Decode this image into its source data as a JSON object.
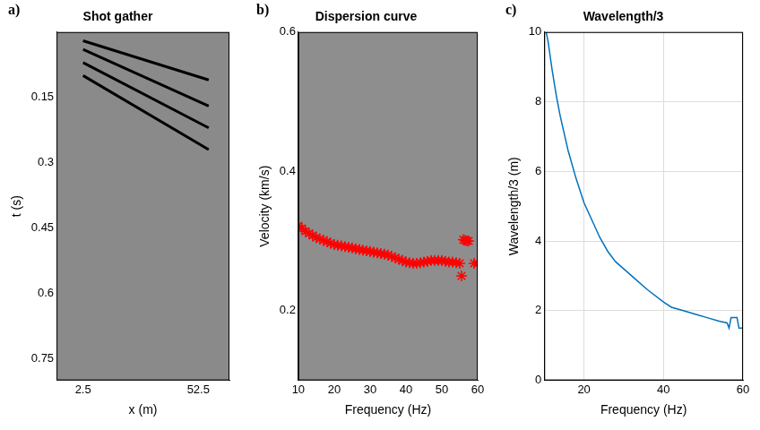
{
  "chart_data": [
    {
      "type": "line",
      "panel_label": "a)",
      "title": "Shot gather",
      "x_label": "x (m)",
      "y_label": "t (s)",
      "xlim": [
        -9,
        66
      ],
      "xticks": [
        2.5,
        52.5
      ],
      "ylim": [
        0.8,
        0
      ],
      "yticks": [
        0.15,
        0.3,
        0.45,
        0.6,
        0.75
      ],
      "grid": false,
      "series": [
        {
          "color": "#000000",
          "x": [
            2.5,
            57
          ],
          "values": [
            0.02,
            0.11
          ]
        },
        {
          "color": "#000000",
          "x": [
            2.5,
            57
          ],
          "values": [
            0.04,
            0.17
          ]
        },
        {
          "color": "#000000",
          "x": [
            2.5,
            57
          ],
          "values": [
            0.07,
            0.22
          ]
        },
        {
          "color": "#000000",
          "x": [
            2.5,
            57
          ],
          "values": [
            0.1,
            0.27
          ]
        }
      ]
    },
    {
      "type": "scatter",
      "panel_label": "b)",
      "title": "Dispersion curve",
      "x_label": "Frequency (Hz)",
      "y_label": "Velocity (km/s)",
      "xlim": [
        10,
        60
      ],
      "xticks": [
        10,
        20,
        30,
        40,
        50,
        60
      ],
      "ylim": [
        0.1,
        0.6
      ],
      "yticks": [
        0.2,
        0.4,
        0.6
      ],
      "grid": true,
      "series": [
        {
          "color": "#ff0000",
          "marker": "star",
          "x": [
            10,
            11,
            12,
            13,
            14,
            15,
            16,
            17,
            18,
            19,
            20,
            21,
            22,
            23,
            24,
            25,
            26,
            27,
            28,
            29,
            30,
            31,
            32,
            33,
            34,
            35,
            36,
            37,
            38,
            39,
            40,
            41,
            42,
            43,
            44,
            45,
            46,
            47,
            48,
            49,
            50,
            51,
            52,
            53,
            54,
            55,
            55.5,
            56,
            56.5,
            57,
            57.5,
            59,
            60
          ],
          "values": [
            0.322,
            0.318,
            0.314,
            0.311,
            0.308,
            0.305,
            0.303,
            0.301,
            0.299,
            0.297,
            0.295,
            0.294,
            0.293,
            0.292,
            0.291,
            0.29,
            0.289,
            0.288,
            0.287,
            0.286,
            0.285,
            0.284,
            0.283,
            0.282,
            0.281,
            0.28,
            0.278,
            0.276,
            0.274,
            0.272,
            0.27,
            0.269,
            0.268,
            0.268,
            0.269,
            0.27,
            0.271,
            0.272,
            0.272,
            0.272,
            0.272,
            0.271,
            0.27,
            0.27,
            0.269,
            0.268,
            0.25,
            0.302,
            0.301,
            0.3,
            0.3,
            0.268,
            0.268
          ]
        }
      ]
    },
    {
      "type": "line",
      "panel_label": "c)",
      "title": "Wavelength/3",
      "x_label": "Frequency (Hz)",
      "y_label": "Wavelength/3 (m)",
      "xlim": [
        10,
        60
      ],
      "xticks": [
        20,
        40,
        60
      ],
      "ylim": [
        0,
        10
      ],
      "yticks": [
        0,
        2,
        4,
        6,
        8,
        10
      ],
      "grid": true,
      "series": [
        {
          "color": "#0072bd",
          "x": [
            10.5,
            11,
            12,
            13,
            14,
            15,
            16,
            18,
            20,
            22,
            24,
            26,
            28,
            30,
            33,
            36,
            40,
            42,
            45,
            48,
            51,
            54,
            56,
            56.5,
            57,
            58.5,
            59,
            60
          ],
          "values": [
            10,
            9.7,
            8.9,
            8.2,
            7.6,
            7.1,
            6.6,
            5.8,
            5.1,
            4.6,
            4.1,
            3.7,
            3.4,
            3.2,
            2.9,
            2.6,
            2.25,
            2.1,
            2.0,
            1.9,
            1.8,
            1.7,
            1.65,
            1.5,
            1.8,
            1.8,
            1.5,
            1.5
          ]
        }
      ]
    }
  ]
}
